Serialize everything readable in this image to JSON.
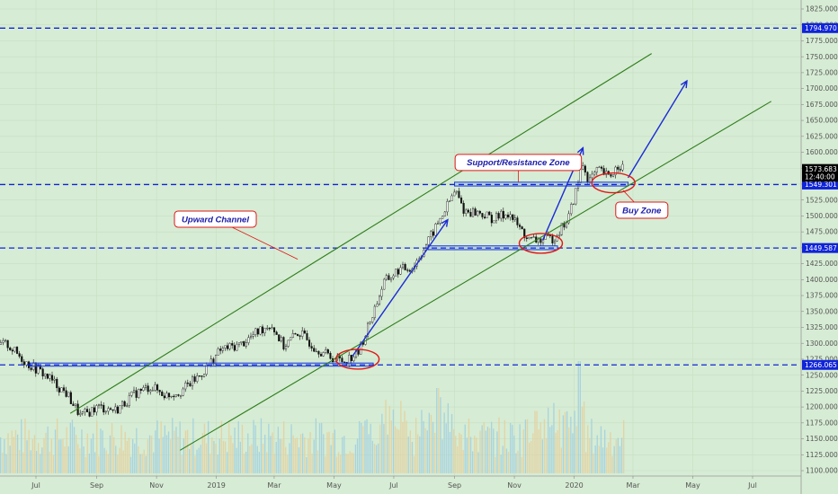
{
  "chart_data": {
    "type": "line",
    "series_style": "candlestick",
    "title": "",
    "xlabel": "",
    "ylabel": "",
    "ylim": [
      1090,
      1835
    ],
    "y_ticks": [
      "1825.000",
      "1800.000",
      "1775.000",
      "1750.000",
      "1725.000",
      "1700.000",
      "1675.000",
      "1650.000",
      "1625.000",
      "1600.000",
      "1575.000",
      "1550.000",
      "1525.000",
      "1500.000",
      "1475.000",
      "1450.000",
      "1425.000",
      "1400.000",
      "1375.000",
      "1350.000",
      "1325.000",
      "1300.000",
      "1275.000",
      "1250.000",
      "1225.000",
      "1200.000",
      "1175.000",
      "1150.000",
      "1125.000",
      "1100.000"
    ],
    "x_ticks": [
      "Jul",
      "Sep",
      "Nov",
      "2019",
      "Mar",
      "May",
      "Jul",
      "Sep",
      "Nov",
      "2020",
      "Mar",
      "May",
      "Jul"
    ],
    "price_path": [
      {
        "date": "2018-06-01",
        "price": 1298
      },
      {
        "date": "2018-06-20",
        "price": 1270
      },
      {
        "date": "2018-07-10",
        "price": 1250
      },
      {
        "date": "2018-08-01",
        "price": 1220
      },
      {
        "date": "2018-08-15",
        "price": 1185
      },
      {
        "date": "2018-09-01",
        "price": 1200
      },
      {
        "date": "2018-09-20",
        "price": 1195
      },
      {
        "date": "2018-10-10",
        "price": 1222
      },
      {
        "date": "2018-10-25",
        "price": 1232
      },
      {
        "date": "2018-11-10",
        "price": 1218
      },
      {
        "date": "2018-11-25",
        "price": 1225
      },
      {
        "date": "2018-12-15",
        "price": 1250
      },
      {
        "date": "2019-01-05",
        "price": 1290
      },
      {
        "date": "2019-01-25",
        "price": 1298
      },
      {
        "date": "2019-02-15",
        "price": 1322
      },
      {
        "date": "2019-02-25",
        "price": 1330
      },
      {
        "date": "2019-03-10",
        "price": 1295
      },
      {
        "date": "2019-03-25",
        "price": 1318
      },
      {
        "date": "2019-04-10",
        "price": 1295
      },
      {
        "date": "2019-04-25",
        "price": 1280
      },
      {
        "date": "2019-05-10",
        "price": 1272
      },
      {
        "date": "2019-05-25",
        "price": 1285
      },
      {
        "date": "2019-06-05",
        "price": 1330
      },
      {
        "date": "2019-06-20",
        "price": 1395
      },
      {
        "date": "2019-07-05",
        "price": 1415
      },
      {
        "date": "2019-07-20",
        "price": 1420
      },
      {
        "date": "2019-08-05",
        "price": 1462
      },
      {
        "date": "2019-08-20",
        "price": 1505
      },
      {
        "date": "2019-09-01",
        "price": 1540
      },
      {
        "date": "2019-09-10",
        "price": 1508
      },
      {
        "date": "2019-09-25",
        "price": 1505
      },
      {
        "date": "2019-10-10",
        "price": 1495
      },
      {
        "date": "2019-10-25",
        "price": 1505
      },
      {
        "date": "2019-11-05",
        "price": 1482
      },
      {
        "date": "2019-11-15",
        "price": 1462
      },
      {
        "date": "2019-11-30",
        "price": 1462
      },
      {
        "date": "2019-12-10",
        "price": 1465
      },
      {
        "date": "2019-12-25",
        "price": 1495
      },
      {
        "date": "2020-01-05",
        "price": 1555
      },
      {
        "date": "2020-01-08",
        "price": 1585
      },
      {
        "date": "2020-01-15",
        "price": 1555
      },
      {
        "date": "2020-01-25",
        "price": 1572
      },
      {
        "date": "2020-02-05",
        "price": 1560
      },
      {
        "date": "2020-02-15",
        "price": 1582
      },
      {
        "date": "2020-02-20",
        "price": 1575
      }
    ],
    "horizontal_levels": [
      {
        "price": 1794.97,
        "label": "1794.970"
      },
      {
        "price": 1549.301,
        "label": "1549.301"
      },
      {
        "price": 1449.587,
        "label": "1449.587"
      },
      {
        "price": 1266.065,
        "label": "1266.065"
      }
    ],
    "price_markers": [
      {
        "price": 1573.683,
        "label": "1573.683",
        "color": "#000000"
      },
      {
        "price": 1561.5,
        "label": "12:40:00",
        "color": "#000000"
      }
    ],
    "channel_lines": [
      {
        "name": "upper",
        "from": {
          "date": "2018-08-05",
          "price": 1190
        },
        "to": {
          "date": "2020-03-20",
          "price": 1755
        }
      },
      {
        "name": "lower",
        "from": {
          "date": "2018-11-25",
          "price": 1132
        },
        "to": {
          "date": "2020-07-20",
          "price": 1680
        }
      }
    ],
    "arrows": [
      {
        "from": {
          "date": "2019-05-20",
          "price": 1280
        },
        "to": {
          "date": "2019-08-25",
          "price": 1494
        }
      },
      {
        "from": {
          "date": "2019-11-30",
          "price": 1462
        },
        "to": {
          "date": "2020-01-10",
          "price": 1607
        }
      },
      {
        "from": {
          "date": "2020-02-25",
          "price": 1560
        },
        "to": {
          "date": "2020-04-25",
          "price": 1712
        }
      }
    ],
    "highlight_ellipses": [
      {
        "date": "2019-05-25",
        "price": 1275
      },
      {
        "date": "2019-11-28",
        "price": 1457
      },
      {
        "date": "2020-02-10",
        "price": 1552
      }
    ],
    "annotations": [
      {
        "name": "upward-channel",
        "text": "Upward Channel",
        "box_at": {
          "date": "2018-12-31",
          "price": 1495
        },
        "pointer_to": {
          "date": "2019-03-25",
          "price": 1432
        }
      },
      {
        "name": "support-resistance-zone",
        "text": "Support/Resistance Zone",
        "box_at": {
          "date": "2019-11-05",
          "price": 1584
        },
        "pointer_to": {
          "date": "2019-11-05",
          "price": 1553
        }
      },
      {
        "name": "buy-zone",
        "text": "Buy Zone",
        "box_at": {
          "date": "2020-03-10",
          "price": 1509
        },
        "pointer_to": {
          "date": "2020-02-20",
          "price": 1540
        }
      }
    ],
    "zones": [
      {
        "start": "2019-09-01",
        "end": "2020-02-25",
        "top": 1553,
        "bottom": 1547
      },
      {
        "start": "2019-08-05",
        "end": "2019-12-15",
        "top": 1453,
        "bottom": 1447
      },
      {
        "start": "2018-06-25",
        "end": "2019-06-10",
        "top": 1269,
        "bottom": 1264
      }
    ],
    "grid": true,
    "legend": "none"
  }
}
